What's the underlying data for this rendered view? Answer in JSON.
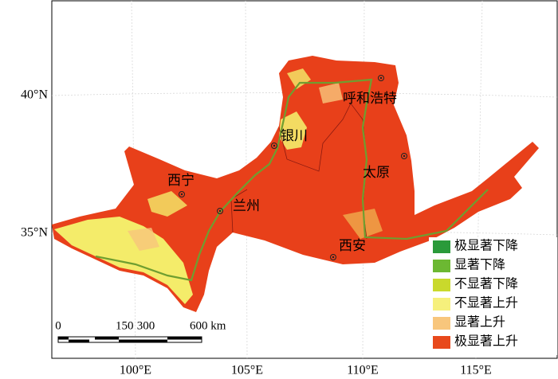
{
  "axes": {
    "x_labels": [
      "100°E",
      "105°E",
      "110°E",
      "115°E"
    ],
    "y_labels": [
      "40°N",
      "35°N"
    ]
  },
  "cities": [
    {
      "label": "呼和浩特"
    },
    {
      "label": "银川"
    },
    {
      "label": "太原"
    },
    {
      "label": "西宁"
    },
    {
      "label": "兰州"
    },
    {
      "label": "西安"
    }
  ],
  "legend": [
    {
      "label": "极显著下降",
      "color": "#2a9a3a"
    },
    {
      "label": "显著下降",
      "color": "#6cb832"
    },
    {
      "label": "不显著下降",
      "color": "#c9d92c"
    },
    {
      "label": "不显著上升",
      "color": "#f6f07c"
    },
    {
      "label": "显著上升",
      "color": "#f8c67c"
    },
    {
      "label": "极显著上升",
      "color": "#e8491c"
    }
  ],
  "scale_bar": {
    "labels": [
      "0",
      "150",
      "300",
      "600 km"
    ]
  }
}
